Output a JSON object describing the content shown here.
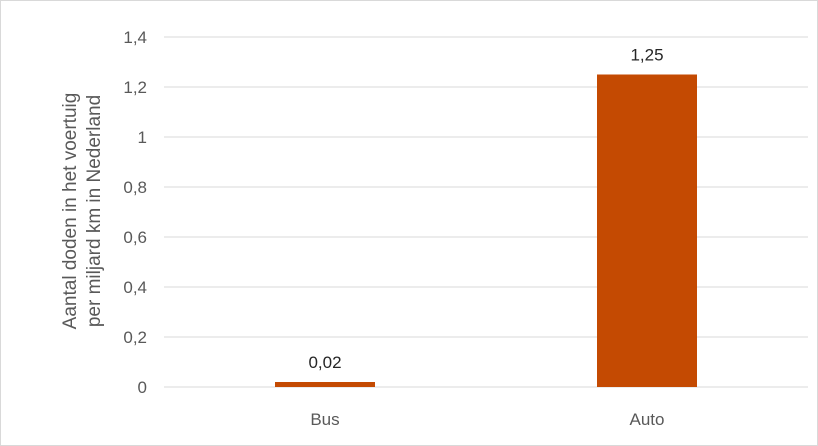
{
  "chart_data": {
    "type": "bar",
    "categories": [
      "Bus",
      "Auto"
    ],
    "values": [
      0.02,
      1.25
    ],
    "data_labels": [
      "0,02",
      "1,25"
    ],
    "title": "",
    "xlabel": "",
    "ylabel_lines": [
      "Aantal doden in het voertuig",
      "per miljard km in Nederland"
    ],
    "ylim": [
      0,
      1.4
    ],
    "yticks": [
      0,
      0.2,
      0.4,
      0.6,
      0.8,
      1,
      1.2,
      1.4
    ],
    "ytick_labels": [
      "0",
      "0,2",
      "0,4",
      "0,6",
      "0,8",
      "1",
      "1,2",
      "1,4"
    ],
    "grid": true,
    "legend": "none",
    "colors": {
      "bar": "#c44a02",
      "grid": "#d9d9d9",
      "text": "#595959",
      "data_label": "#262626"
    }
  }
}
